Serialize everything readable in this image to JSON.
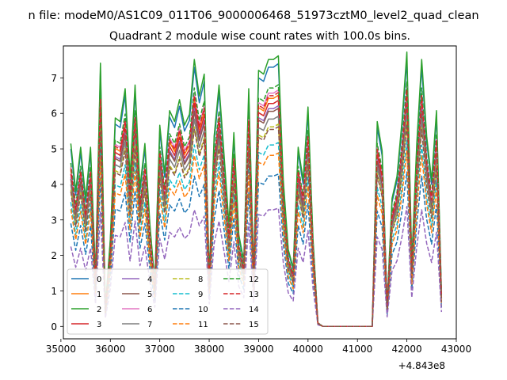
{
  "suptitle": "n file: modeM0/AS1C09_011T06_9000006468_51973cztM0_level2_quad_clean",
  "chart_data": {
    "type": "line",
    "title": "Quadrant 2 module wise count rates with 100.0s bins.",
    "xlabel": "",
    "ylabel": "",
    "x_offset_label": "+4.843e8",
    "xlim": [
      35050,
      43000
    ],
    "ylim": [
      -0.35,
      7.9
    ],
    "xticks": [
      35000,
      36000,
      37000,
      38000,
      39000,
      40000,
      41000,
      42000,
      43000
    ],
    "xtick_labels": [
      "35000",
      "36000",
      "37000",
      "38000",
      "39000",
      "40000",
      "41000",
      "42000",
      "43000"
    ],
    "yticks": [
      0,
      1,
      2,
      3,
      4,
      5,
      6,
      7
    ],
    "ytick_labels": [
      "0",
      "1",
      "2",
      "3",
      "4",
      "5",
      "6",
      "7"
    ],
    "grid": false,
    "legend": {
      "location": "lower-left",
      "columns": 4
    },
    "x": [
      35200,
      35300,
      35400,
      35500,
      35600,
      35700,
      35800,
      35900,
      36000,
      36100,
      36200,
      36300,
      36400,
      36500,
      36600,
      36700,
      36800,
      36900,
      37000,
      37100,
      37200,
      37300,
      37400,
      37500,
      37600,
      37700,
      37800,
      37900,
      38000,
      38100,
      38200,
      38300,
      38400,
      38500,
      38600,
      38700,
      38800,
      38900,
      39000,
      39100,
      39200,
      39300,
      39400,
      39500,
      39600,
      39700,
      39800,
      39900,
      40000,
      40100,
      40200,
      40300,
      40400,
      40500,
      40600,
      40700,
      40800,
      40900,
      41000,
      41100,
      41200,
      41300,
      41400,
      41500,
      41600,
      41700,
      41800,
      41900,
      42000,
      42100,
      42200,
      42300,
      42400,
      42500,
      42600,
      42700
    ],
    "base_profile": [
      5.0,
      3.7,
      4.9,
      3.5,
      4.9,
      1.4,
      7.2,
      0.5,
      2.4,
      5.7,
      5.6,
      6.5,
      4.1,
      6.6,
      3.8,
      5.0,
      2.8,
      1.2,
      5.5,
      4.2,
      5.9,
      5.6,
      6.2,
      5.5,
      5.8,
      7.3,
      6.3,
      6.9,
      1.4,
      5.2,
      6.6,
      4.7,
      2.8,
      5.3,
      2.5,
      1.8,
      6.5,
      1.5,
      7.0,
      6.9,
      7.3,
      7.3,
      7.4,
      4.0,
      2.1,
      1.6,
      4.9,
      4.0,
      6.0,
      2.4,
      0.1,
      0.0,
      0.0,
      0.0,
      0.0,
      0.0,
      0.0,
      0.0,
      0.0,
      0.0,
      0.0,
      0.0,
      5.6,
      4.8,
      0.6,
      3.5,
      4.1,
      5.6,
      7.5,
      1.8,
      5.0,
      7.3,
      5.2,
      4.0,
      5.9,
      0.9
    ],
    "series": [
      {
        "name": "0",
        "color": "#1f77b4",
        "style": "solid",
        "scale": 1.0
      },
      {
        "name": "1",
        "color": "#ff7f0e",
        "style": "solid",
        "scale": 0.88
      },
      {
        "name": "2",
        "color": "#2ca02c",
        "style": "solid",
        "scale": 1.03
      },
      {
        "name": "3",
        "color": "#d62728",
        "style": "solid",
        "scale": 0.86
      },
      {
        "name": "4",
        "color": "#9467bd",
        "style": "solid",
        "scale": 0.84
      },
      {
        "name": "5",
        "color": "#8c564b",
        "style": "solid",
        "scale": 0.83
      },
      {
        "name": "6",
        "color": "#e377c2",
        "style": "solid",
        "scale": 0.9
      },
      {
        "name": "7",
        "color": "#7f7f7f",
        "style": "solid",
        "scale": 0.8
      },
      {
        "name": "8",
        "color": "#bcbd22",
        "style": "dashed",
        "scale": 0.77
      },
      {
        "name": "9",
        "color": "#17becf",
        "style": "dashed",
        "scale": 0.7
      },
      {
        "name": "10",
        "color": "#1f77b4",
        "style": "dashed",
        "scale": 0.58
      },
      {
        "name": "11",
        "color": "#ff7f0e",
        "style": "dashed",
        "scale": 0.66
      },
      {
        "name": "12",
        "color": "#2ca02c",
        "style": "dashed",
        "scale": 0.92
      },
      {
        "name": "13",
        "color": "#d62728",
        "style": "dashed",
        "scale": 0.89
      },
      {
        "name": "14",
        "color": "#9467bd",
        "style": "dashed",
        "scale": 0.45
      },
      {
        "name": "15",
        "color": "#8c564b",
        "style": "dashed",
        "scale": 0.76
      }
    ]
  }
}
